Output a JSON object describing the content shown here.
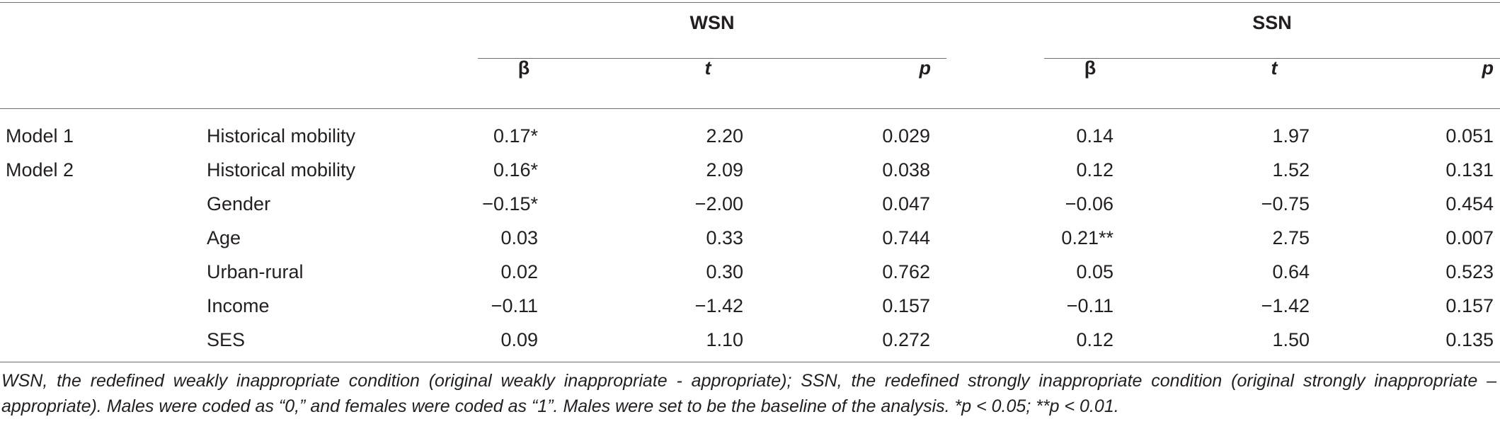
{
  "groups": {
    "wsn": "WSN",
    "ssn": "SSN"
  },
  "columns": {
    "wsn_beta": "β",
    "wsn_t": "t",
    "wsn_p": "p",
    "ssn_beta": "β",
    "ssn_t": "t",
    "ssn_p": "p"
  },
  "rows": [
    {
      "model": "Model 1",
      "variable": "Historical mobility",
      "wsn_beta": "0.17*",
      "wsn_t": "2.20",
      "wsn_p": "0.029",
      "ssn_beta": "0.14",
      "ssn_t": "1.97",
      "ssn_p": "0.051"
    },
    {
      "model": "Model 2",
      "variable": "Historical mobility",
      "wsn_beta": "0.16*",
      "wsn_t": "2.09",
      "wsn_p": "0.038",
      "ssn_beta": "0.12",
      "ssn_t": "1.52",
      "ssn_p": "0.131"
    },
    {
      "model": "",
      "variable": "Gender",
      "wsn_beta": "−0.15*",
      "wsn_t": "−2.00",
      "wsn_p": "0.047",
      "ssn_beta": "−0.06",
      "ssn_t": "−0.75",
      "ssn_p": "0.454"
    },
    {
      "model": "",
      "variable": "Age",
      "wsn_beta": "0.03",
      "wsn_t": "0.33",
      "wsn_p": "0.744",
      "ssn_beta": "0.21**",
      "ssn_t": "2.75",
      "ssn_p": "0.007"
    },
    {
      "model": "",
      "variable": "Urban-rural",
      "wsn_beta": "0.02",
      "wsn_t": "0.30",
      "wsn_p": "0.762",
      "ssn_beta": "0.05",
      "ssn_t": "0.64",
      "ssn_p": "0.523"
    },
    {
      "model": "",
      "variable": "Income",
      "wsn_beta": "−0.11",
      "wsn_t": "−1.42",
      "wsn_p": "0.157",
      "ssn_beta": "−0.11",
      "ssn_t": "−1.42",
      "ssn_p": "0.157"
    },
    {
      "model": "",
      "variable": "SES",
      "wsn_beta": "0.09",
      "wsn_t": "1.10",
      "wsn_p": "0.272",
      "ssn_beta": "0.12",
      "ssn_t": "1.50",
      "ssn_p": "0.135"
    }
  ],
  "footnote": "WSN, the redefined weakly inappropriate condition (original weakly inappropriate - appropriate); SSN, the redefined strongly inappropriate condition (original strongly inappropriate – appropriate). Males were coded as “0,” and females were coded as “1”. Males were set to be the baseline of the analysis. *p < 0.05; **p < 0.01."
}
